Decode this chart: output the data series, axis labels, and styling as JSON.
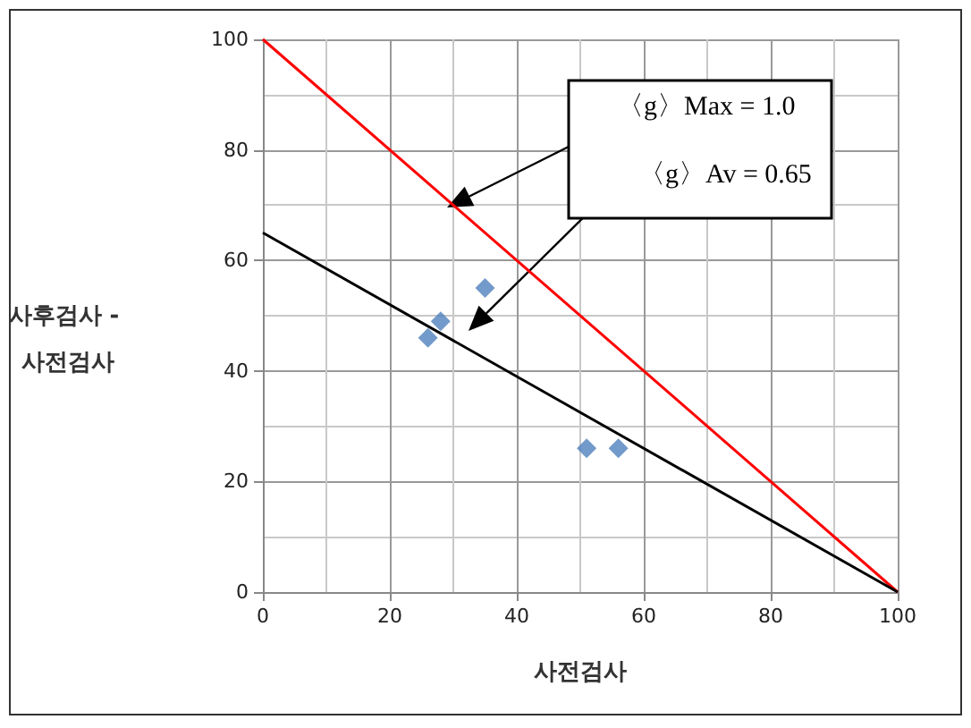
{
  "chart_data": {
    "type": "scatter",
    "xlabel": "사전검사",
    "ylabel": "사후검사 - 사전검사",
    "xlim": [
      0,
      100
    ],
    "xticks": [
      0,
      20,
      40,
      60,
      80,
      100
    ],
    "ylim": [
      0,
      100
    ],
    "yticks": [
      0,
      20,
      40,
      60,
      80,
      100
    ],
    "grid": true,
    "series": [
      {
        "marker": "diamond",
        "color": "#4f81bd",
        "x": [
          26,
          28,
          35,
          51,
          56
        ],
        "values": [
          46,
          49,
          55,
          26,
          26
        ]
      },
      {
        "type": "line",
        "color": "#ff0000",
        "x": [
          0,
          100
        ],
        "values": [
          100,
          0
        ]
      },
      {
        "type": "line",
        "color": "#000000",
        "x": [
          0,
          100
        ],
        "values": [
          65,
          0
        ]
      }
    ],
    "annotations": [
      "〈g〉Max = 1.0",
      "〈g〉Av = 0.65"
    ]
  }
}
